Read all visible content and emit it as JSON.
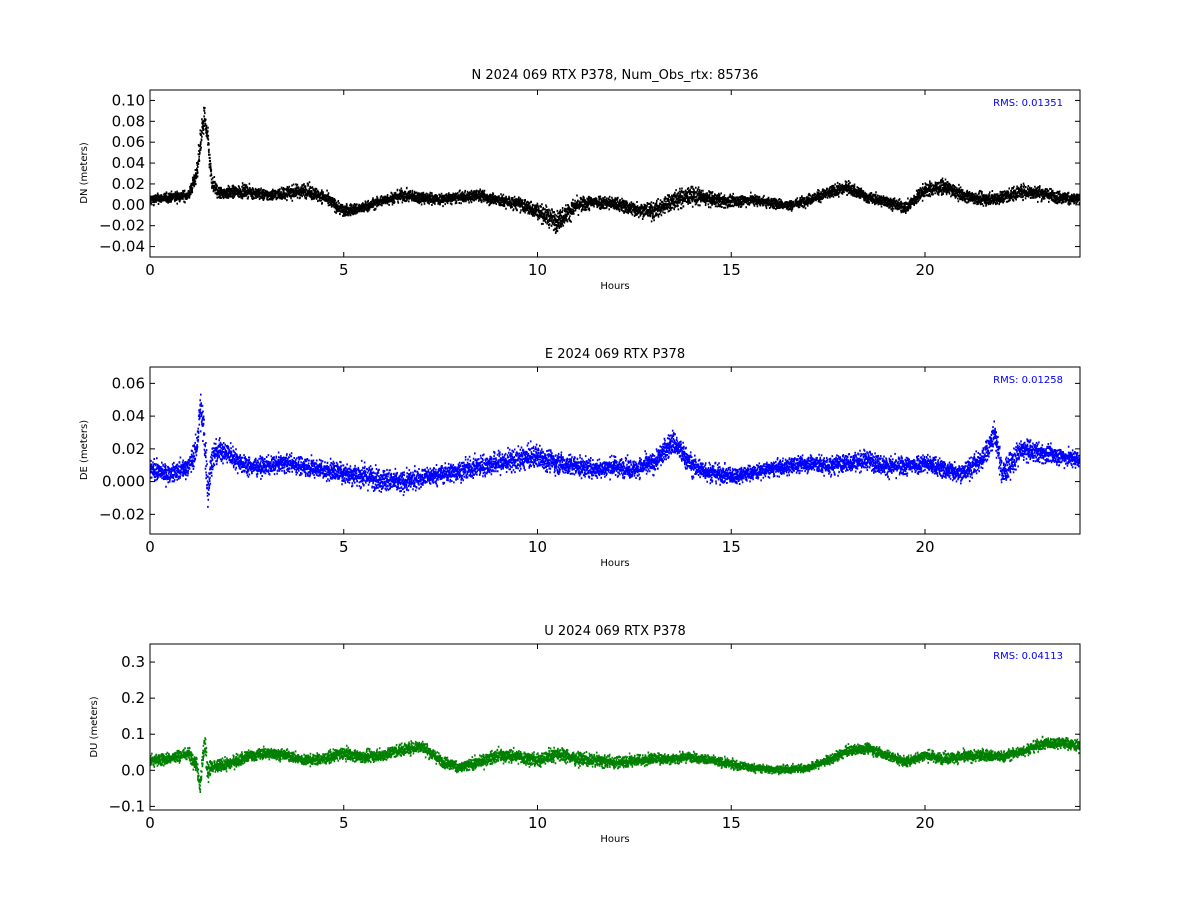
{
  "figure": {
    "background": "#ffffff"
  },
  "chart_data": [
    {
      "type": "scatter",
      "title": "N 2024 069 RTX  P378, Num_Obs_rtx: 85736",
      "xlabel": "Hours",
      "ylabel": "DN (meters)",
      "xlim": [
        0,
        24
      ],
      "ylim": [
        -0.05,
        0.11
      ],
      "xticks": [
        0,
        5,
        10,
        15,
        20
      ],
      "yticks": [
        -0.04,
        -0.02,
        0.0,
        0.02,
        0.04,
        0.06,
        0.08,
        0.1
      ],
      "ytick_labels": [
        "−0.04",
        "−0.02",
        "0.00",
        "0.02",
        "0.04",
        "0.06",
        "0.08",
        "0.10"
      ],
      "rms_label": "RMS:  0.01351",
      "color": "#000000",
      "grid": false,
      "series": [
        {
          "x": [
            0,
            0.5,
            1.0,
            1.2,
            1.3,
            1.4,
            1.5,
            1.6,
            1.8,
            2.5,
            3.0,
            3.5,
            4.0,
            4.5,
            5.0,
            5.5,
            6.0,
            6.5,
            7.0,
            7.5,
            8.0,
            8.5,
            9.0,
            9.5,
            10.0,
            10.5,
            11.0,
            11.5,
            12.0,
            12.5,
            13.0,
            13.5,
            14.0,
            14.5,
            15.0,
            15.5,
            16.0,
            16.5,
            17.0,
            17.5,
            18.0,
            18.5,
            19.0,
            19.5,
            20.0,
            20.5,
            21.0,
            21.5,
            22.0,
            22.5,
            23.0,
            23.5,
            24.0
          ],
          "y": [
            0.006,
            0.008,
            0.01,
            0.03,
            0.06,
            0.085,
            0.06,
            0.02,
            0.012,
            0.014,
            0.01,
            0.012,
            0.015,
            0.008,
            -0.005,
            -0.002,
            0.005,
            0.01,
            0.008,
            0.006,
            0.008,
            0.01,
            0.005,
            0.002,
            -0.005,
            -0.015,
            0.0,
            0.004,
            0.002,
            -0.003,
            -0.005,
            0.005,
            0.01,
            0.006,
            0.004,
            0.006,
            0.003,
            0.0,
            0.006,
            0.012,
            0.018,
            0.008,
            0.004,
            -0.002,
            0.015,
            0.018,
            0.01,
            0.006,
            0.008,
            0.014,
            0.012,
            0.008,
            0.006
          ],
          "spread": [
            0.008,
            0.008,
            0.009,
            0.015,
            0.02,
            0.025,
            0.02,
            0.015,
            0.01,
            0.01,
            0.009,
            0.01,
            0.012,
            0.01,
            0.01,
            0.009,
            0.009,
            0.01,
            0.01,
            0.009,
            0.009,
            0.01,
            0.01,
            0.011,
            0.013,
            0.018,
            0.013,
            0.011,
            0.011,
            0.012,
            0.014,
            0.016,
            0.015,
            0.012,
            0.01,
            0.009,
            0.009,
            0.008,
            0.009,
            0.01,
            0.01,
            0.009,
            0.009,
            0.01,
            0.012,
            0.011,
            0.01,
            0.01,
            0.011,
            0.012,
            0.011,
            0.01,
            0.01
          ]
        }
      ]
    },
    {
      "type": "scatter",
      "title": "E 2024 069 RTX  P378",
      "xlabel": "Hours",
      "ylabel": "DE (meters)",
      "xlim": [
        0,
        24
      ],
      "ylim": [
        -0.032,
        0.07
      ],
      "xticks": [
        0,
        5,
        10,
        15,
        20
      ],
      "yticks": [
        -0.02,
        0.0,
        0.02,
        0.04,
        0.06
      ],
      "ytick_labels": [
        "−0.02",
        "0.000",
        "0.02",
        "0.04",
        "0.06"
      ],
      "rms_label": "RMS:  0.01258",
      "color": "#0000ff",
      "grid": false,
      "series": [
        {
          "x": [
            0,
            0.5,
            1.0,
            1.2,
            1.3,
            1.4,
            1.5,
            1.6,
            1.8,
            2.0,
            2.5,
            3.0,
            3.5,
            4.0,
            4.5,
            5.0,
            5.5,
            6.0,
            6.5,
            7.0,
            7.5,
            8.0,
            8.5,
            9.0,
            9.5,
            10.0,
            10.5,
            11.0,
            11.5,
            12.0,
            12.5,
            13.0,
            13.5,
            14.0,
            14.5,
            15.0,
            15.5,
            16.0,
            16.5,
            17.0,
            17.5,
            18.0,
            18.5,
            19.0,
            19.5,
            20.0,
            20.5,
            21.0,
            21.5,
            21.8,
            22.0,
            22.5,
            23.0,
            23.5,
            24.0
          ],
          "y": [
            0.008,
            0.005,
            0.01,
            0.02,
            0.045,
            0.03,
            -0.005,
            0.015,
            0.02,
            0.018,
            0.01,
            0.01,
            0.012,
            0.01,
            0.008,
            0.006,
            0.004,
            0.002,
            0.0,
            0.003,
            0.005,
            0.007,
            0.01,
            0.012,
            0.014,
            0.016,
            0.012,
            0.01,
            0.008,
            0.01,
            0.008,
            0.012,
            0.025,
            0.01,
            0.006,
            0.004,
            0.006,
            0.008,
            0.01,
            0.012,
            0.01,
            0.012,
            0.014,
            0.01,
            0.01,
            0.012,
            0.008,
            0.006,
            0.015,
            0.03,
            0.005,
            0.02,
            0.018,
            0.016,
            0.014
          ],
          "spread": [
            0.01,
            0.009,
            0.01,
            0.015,
            0.02,
            0.025,
            0.02,
            0.015,
            0.012,
            0.011,
            0.01,
            0.009,
            0.009,
            0.01,
            0.01,
            0.011,
            0.012,
            0.012,
            0.011,
            0.01,
            0.01,
            0.01,
            0.011,
            0.012,
            0.012,
            0.012,
            0.011,
            0.011,
            0.01,
            0.01,
            0.01,
            0.011,
            0.013,
            0.011,
            0.01,
            0.009,
            0.008,
            0.008,
            0.009,
            0.009,
            0.01,
            0.01,
            0.01,
            0.01,
            0.01,
            0.01,
            0.01,
            0.01,
            0.012,
            0.014,
            0.014,
            0.012,
            0.01,
            0.009,
            0.009
          ]
        }
      ]
    },
    {
      "type": "scatter",
      "title": "U 2024 069 RTX  P378",
      "xlabel": "Hours",
      "ylabel": "DU (meters)",
      "xlim": [
        0,
        24
      ],
      "ylim": [
        -0.11,
        0.35
      ],
      "xticks": [
        0,
        5,
        10,
        15,
        20
      ],
      "yticks": [
        -0.1,
        0.0,
        0.1,
        0.2,
        0.3
      ],
      "ytick_labels": [
        "−0.1",
        "0.0",
        "0.1",
        "0.2",
        "0.3"
      ],
      "rms_label": "RMS:  0.04113",
      "color": "#008000",
      "grid": false,
      "series": [
        {
          "x": [
            0,
            0.5,
            1.0,
            1.2,
            1.3,
            1.4,
            1.5,
            1.6,
            1.8,
            2.0,
            2.5,
            3.0,
            3.5,
            4.0,
            4.5,
            5.0,
            5.5,
            6.0,
            6.5,
            7.0,
            7.5,
            8.0,
            8.5,
            9.0,
            9.5,
            10.0,
            10.5,
            11.0,
            11.5,
            12.0,
            12.5,
            13.0,
            13.5,
            14.0,
            14.5,
            15.0,
            15.5,
            16.0,
            16.5,
            17.0,
            17.5,
            18.0,
            18.5,
            19.0,
            19.5,
            20.0,
            20.5,
            21.0,
            21.5,
            22.0,
            22.5,
            23.0,
            23.5,
            24.0
          ],
          "y": [
            0.03,
            0.035,
            0.05,
            0.02,
            -0.04,
            0.08,
            0.0,
            0.01,
            0.015,
            0.02,
            0.04,
            0.05,
            0.045,
            0.03,
            0.035,
            0.05,
            0.04,
            0.045,
            0.06,
            0.07,
            0.03,
            0.01,
            0.025,
            0.045,
            0.04,
            0.03,
            0.05,
            0.035,
            0.03,
            0.025,
            0.03,
            0.035,
            0.035,
            0.04,
            0.03,
            0.02,
            0.01,
            0.005,
            0.005,
            0.01,
            0.03,
            0.055,
            0.065,
            0.045,
            0.025,
            0.045,
            0.035,
            0.04,
            0.045,
            0.04,
            0.055,
            0.075,
            0.08,
            0.07
          ],
          "spread": [
            0.03,
            0.028,
            0.03,
            0.035,
            0.05,
            0.07,
            0.05,
            0.035,
            0.03,
            0.03,
            0.028,
            0.026,
            0.026,
            0.026,
            0.026,
            0.028,
            0.028,
            0.028,
            0.03,
            0.03,
            0.028,
            0.026,
            0.028,
            0.03,
            0.032,
            0.032,
            0.034,
            0.03,
            0.028,
            0.028,
            0.028,
            0.026,
            0.024,
            0.022,
            0.022,
            0.022,
            0.02,
            0.018,
            0.018,
            0.02,
            0.022,
            0.024,
            0.024,
            0.024,
            0.024,
            0.026,
            0.026,
            0.028,
            0.028,
            0.026,
            0.026,
            0.026,
            0.026,
            0.028
          ]
        }
      ]
    }
  ]
}
